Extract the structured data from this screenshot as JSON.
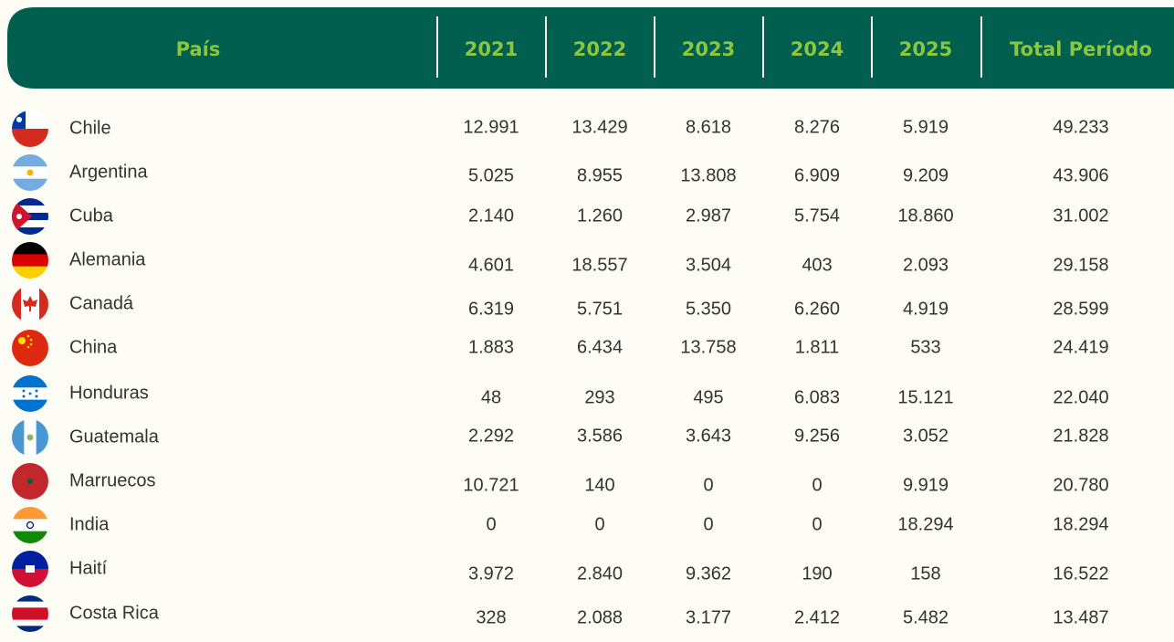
{
  "table": {
    "header": [
      "País",
      "2021",
      "2022",
      "2023",
      "2024",
      "2025",
      "Total Período"
    ],
    "rows": [
      [
        "Chile",
        "12.991",
        "13.429",
        "8.618",
        "8.276",
        "5.919",
        "49.233"
      ],
      [
        "Argentina",
        "5.025",
        "8.955",
        "13.808",
        "6.909",
        "9.209",
        "43.906"
      ],
      [
        "Cuba",
        "2.140",
        "1.260",
        "2.987",
        "5.754",
        "18.860",
        "31.002"
      ],
      [
        "Alemania",
        "4.601",
        "18.557",
        "3.504",
        "403",
        "2.093",
        "29.158"
      ],
      [
        "Canadá",
        "6.319",
        "5.751",
        "5.350",
        "6.260",
        "4.919",
        "28.599"
      ],
      [
        "China",
        "1.883",
        "6.434",
        "13.758",
        "1.811",
        "533",
        "24.419"
      ],
      [
        "Honduras",
        "48",
        "293",
        "495",
        "6.083",
        "15.121",
        "22.040"
      ],
      [
        "Guatemala",
        "2.292",
        "3.586",
        "3.643",
        "9.256",
        "3.052",
        "21.828"
      ],
      [
        "Marruecos",
        "10.721",
        "140",
        "0",
        "0",
        "9.919",
        "20.780"
      ],
      [
        "India",
        "0",
        "0",
        "0",
        "0",
        "18.294",
        "18.294"
      ],
      [
        "Haití",
        "3.972",
        "2.840",
        "9.362",
        "190",
        "158",
        "16.522"
      ],
      [
        "Costa Rica",
        "328",
        "2.088",
        "3.177",
        "2.412",
        "5.482",
        "13.487"
      ]
    ]
  }
}
